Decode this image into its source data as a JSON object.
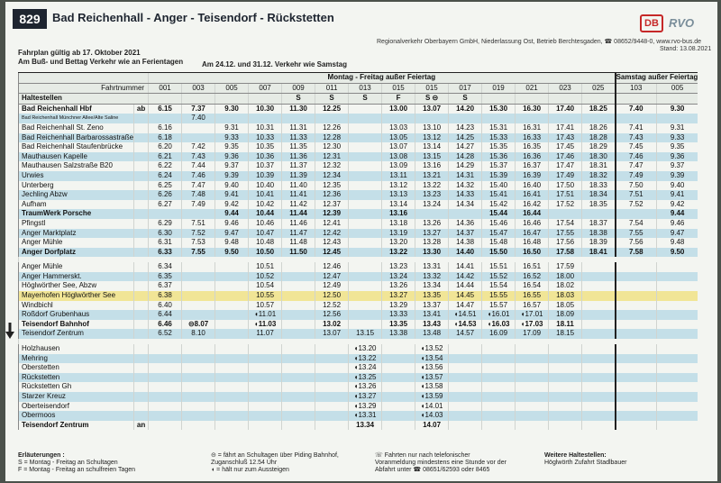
{
  "header": {
    "route_number": "829",
    "route_title": "Bad Reichenhall - Anger - Teisendorf - Rückstetten",
    "validity_line1": "Fahrplan gültig ab 17. Oktober 2021",
    "validity_line2": "Am Buß- und Bettag Verkehr wie an Ferientagen",
    "special_days": "Am 24.12. und 31.12. Verkehr wie Samstag",
    "operator": "Regionalverkehr Oberbayern GmbH, Niederlassung Ost, Betrieb Berchtesgaden, ☎ 08652/9448-0, www.rvo-bus.de",
    "stand": "Stand: 13.08.2021",
    "logo_db": "DB",
    "logo_rvo": "RVO"
  },
  "table": {
    "group_weekday": "Montag - Freitag außer Feiertag",
    "group_saturday": "Samstag außer Feiertag",
    "stops_header": "Haltestellen",
    "trip_number_label": "Fahrtnummer",
    "trips": [
      "001",
      "003",
      "005",
      "007",
      "009",
      "011",
      "013",
      "015",
      "015",
      "017",
      "019",
      "021",
      "023",
      "025",
      "103",
      "005"
    ],
    "notes": [
      "",
      "",
      "",
      "",
      "S",
      "S",
      "S",
      "F",
      "S ⊝",
      "S",
      "",
      "",
      "",
      "",
      "",
      ""
    ],
    "rows": [
      {
        "stop": "Bad Reichenhall Hbf",
        "mark": "ab",
        "times": [
          "6.15",
          "7.37",
          "9.30",
          "10.30",
          "11.30",
          "12.25",
          "",
          "13.00",
          "13.07",
          "14.20",
          "15.30",
          "16.30",
          "17.40",
          "18.25",
          "7.40",
          "9.30"
        ],
        "style": "bold"
      },
      {
        "stop": "Bad Reichenhall Münchner Allee/Alte Saline",
        "mark": "",
        "times": [
          "",
          "7.40",
          "",
          "",
          "",
          "",
          "",
          "",
          "",
          "",
          "",
          "",
          "",
          "",
          "",
          ""
        ],
        "style": "small"
      },
      {
        "stop": "Bad Reichenhall St. Zeno",
        "mark": "",
        "times": [
          "6.16",
          "",
          "9.31",
          "10.31",
          "11.31",
          "12.26",
          "",
          "13.03",
          "13.10",
          "14.23",
          "15.31",
          "16.31",
          "17.41",
          "18.26",
          "7.41",
          "9.31"
        ],
        "style": ""
      },
      {
        "stop": "Bad Reichenhall Barbarossastraße",
        "mark": "",
        "times": [
          "6.18",
          "",
          "9.33",
          "10.33",
          "11.33",
          "12.28",
          "",
          "13.05",
          "13.12",
          "14.25",
          "15.33",
          "16.33",
          "17.43",
          "18.28",
          "7.43",
          "9.33"
        ],
        "style": ""
      },
      {
        "stop": "Bad Reichenhall Staufenbrücke",
        "mark": "",
        "times": [
          "6.20",
          "7.42",
          "9.35",
          "10.35",
          "11.35",
          "12.30",
          "",
          "13.07",
          "13.14",
          "14.27",
          "15.35",
          "16.35",
          "17.45",
          "18.29",
          "7.45",
          "9.35"
        ],
        "style": ""
      },
      {
        "stop": "Mauthausen Kapelle",
        "mark": "",
        "times": [
          "6.21",
          "7.43",
          "9.36",
          "10.36",
          "11.36",
          "12.31",
          "",
          "13.08",
          "13.15",
          "14.28",
          "15.36",
          "16.36",
          "17.46",
          "18.30",
          "7.46",
          "9.36"
        ],
        "style": ""
      },
      {
        "stop": "Mauthausen Salzstraße B20",
        "mark": "",
        "times": [
          "6.22",
          "7.44",
          "9.37",
          "10.37",
          "11.37",
          "12.32",
          "",
          "13.09",
          "13.16",
          "14.29",
          "15.37",
          "16.37",
          "17.47",
          "18.31",
          "7.47",
          "9.37"
        ],
        "style": ""
      },
      {
        "stop": "Urwies",
        "mark": "",
        "times": [
          "6.24",
          "7.46",
          "9.39",
          "10.39",
          "11.39",
          "12.34",
          "",
          "13.11",
          "13.21",
          "14.31",
          "15.39",
          "16.39",
          "17.49",
          "18.32",
          "7.49",
          "9.39"
        ],
        "style": ""
      },
      {
        "stop": "Unterberg",
        "mark": "",
        "times": [
          "6.25",
          "7.47",
          "9.40",
          "10.40",
          "11.40",
          "12.35",
          "",
          "13.12",
          "13.22",
          "14.32",
          "15.40",
          "16.40",
          "17.50",
          "18.33",
          "7.50",
          "9.40"
        ],
        "style": ""
      },
      {
        "stop": "Jechling Abzw",
        "mark": "",
        "times": [
          "6.26",
          "7.48",
          "9.41",
          "10.41",
          "11.41",
          "12.36",
          "",
          "13.13",
          "13.23",
          "14.33",
          "15.41",
          "16.41",
          "17.51",
          "18.34",
          "7.51",
          "9.41"
        ],
        "style": ""
      },
      {
        "stop": "Aufham",
        "mark": "",
        "times": [
          "6.27",
          "7.49",
          "9.42",
          "10.42",
          "11.42",
          "12.37",
          "",
          "13.14",
          "13.24",
          "14.34",
          "15.42",
          "16.42",
          "17.52",
          "18.35",
          "7.52",
          "9.42"
        ],
        "style": ""
      },
      {
        "stop": "TraumWerk Porsche",
        "mark": "",
        "times": [
          "",
          "",
          "9.44",
          "10.44",
          "11.44",
          "12.39",
          "",
          "13.16",
          "",
          "",
          "15.44",
          "16.44",
          "",
          "",
          "",
          "9.44"
        ],
        "style": "bold"
      },
      {
        "stop": "Pfingstl",
        "mark": "",
        "times": [
          "6.29",
          "7.51",
          "9.46",
          "10.46",
          "11.46",
          "12.41",
          "",
          "13.18",
          "13.26",
          "14.36",
          "15.46",
          "16.46",
          "17.54",
          "18.37",
          "7.54",
          "9.46"
        ],
        "style": ""
      },
      {
        "stop": "Anger Marktplatz",
        "mark": "",
        "times": [
          "6.30",
          "7.52",
          "9.47",
          "10.47",
          "11.47",
          "12.42",
          "",
          "13.19",
          "13.27",
          "14.37",
          "15.47",
          "16.47",
          "17.55",
          "18.38",
          "7.55",
          "9.47"
        ],
        "style": ""
      },
      {
        "stop": "Anger Mühle",
        "mark": "",
        "times": [
          "6.31",
          "7.53",
          "9.48",
          "10.48",
          "11.48",
          "12.43",
          "",
          "13.20",
          "13.28",
          "14.38",
          "15.48",
          "16.48",
          "17.56",
          "18.39",
          "7.56",
          "9.48"
        ],
        "style": ""
      },
      {
        "stop": "Anger Dorfplatz",
        "mark": "",
        "times": [
          "6.33",
          "7.55",
          "9.50",
          "10.50",
          "11.50",
          "12.45",
          "",
          "13.22",
          "13.30",
          "14.40",
          "15.50",
          "16.50",
          "17.58",
          "18.41",
          "7.58",
          "9.50"
        ],
        "style": "bold"
      },
      {
        "stop": "Anger Mühle",
        "mark": "",
        "times": [
          "6.34",
          "",
          "",
          "10.51",
          "",
          "12.46",
          "",
          "13.23",
          "13.31",
          "14.41",
          "15.51",
          "16.51",
          "17.59",
          "",
          "",
          ""
        ],
        "style": ""
      },
      {
        "stop": "Anger Hammerskt.",
        "mark": "",
        "times": [
          "6.35",
          "",
          "",
          "10.52",
          "",
          "12.47",
          "",
          "13.24",
          "13.32",
          "14.42",
          "15.52",
          "16.52",
          "18.00",
          "",
          "",
          ""
        ],
        "style": ""
      },
      {
        "stop": "Höglwörther See, Abzw",
        "mark": "",
        "times": [
          "6.37",
          "",
          "",
          "10.54",
          "",
          "12.49",
          "",
          "13.26",
          "13.34",
          "14.44",
          "15.54",
          "16.54",
          "18.02",
          "",
          "",
          ""
        ],
        "style": ""
      },
      {
        "stop": "Mayerhofen Höglwörther See",
        "mark": "",
        "times": [
          "6.38",
          "",
          "",
          "10.55",
          "",
          "12.50",
          "",
          "13.27",
          "13.35",
          "14.45",
          "15.55",
          "16.55",
          "18.03",
          "",
          "",
          ""
        ],
        "style": "hl"
      },
      {
        "stop": "Windbichl",
        "mark": "",
        "times": [
          "6.40",
          "",
          "",
          "10.57",
          "",
          "12.52",
          "",
          "13.29",
          "13.37",
          "14.47",
          "15.57",
          "16.57",
          "18.05",
          "",
          "",
          ""
        ],
        "style": ""
      },
      {
        "stop": "Roßdorf Grubenhaus",
        "mark": "",
        "times": [
          "6.44",
          "",
          "",
          "◖11.01",
          "",
          "12.56",
          "",
          "13.33",
          "13.41",
          "◖14.51",
          "◖16.01",
          "◖17.01",
          "18.09",
          "",
          "",
          ""
        ],
        "style": ""
      },
      {
        "stop": "Teisendorf Bahnhof",
        "mark": "",
        "times": [
          "6.46",
          "⊝8.07",
          "",
          "◖11.03",
          "",
          "13.02",
          "",
          "13.35",
          "13.43",
          "◖14.53",
          "◖16.03",
          "◖17.03",
          "18.11",
          "",
          "",
          ""
        ],
        "style": "bold"
      },
      {
        "stop": "Teisendorf Zentrum",
        "mark": "",
        "times": [
          "6.52",
          "8.10",
          "",
          "11.07",
          "",
          "13.07",
          "13.15",
          "13.38",
          "13.48",
          "14.57",
          "16.09",
          "17.09",
          "18.15",
          "",
          "",
          ""
        ],
        "style": ""
      },
      {
        "stop": "Holzhausen",
        "mark": "",
        "times": [
          "",
          "",
          "",
          "",
          "",
          "",
          "◖13.20",
          "",
          "◖13.52",
          "",
          "",
          "",
          "",
          "",
          "",
          ""
        ],
        "style": ""
      },
      {
        "stop": "Mehring",
        "mark": "",
        "times": [
          "",
          "",
          "",
          "",
          "",
          "",
          "◖13.22",
          "",
          "◖13.54",
          "",
          "",
          "",
          "",
          "",
          "",
          ""
        ],
        "style": ""
      },
      {
        "stop": "Oberstetten",
        "mark": "",
        "times": [
          "",
          "",
          "",
          "",
          "",
          "",
          "◖13.24",
          "",
          "◖13.56",
          "",
          "",
          "",
          "",
          "",
          "",
          ""
        ],
        "style": ""
      },
      {
        "stop": "Rückstetten",
        "mark": "",
        "times": [
          "",
          "",
          "",
          "",
          "",
          "",
          "◖13.25",
          "",
          "◖13.57",
          "",
          "",
          "",
          "",
          "",
          "",
          ""
        ],
        "style": ""
      },
      {
        "stop": "Rückstetten Gh",
        "mark": "",
        "times": [
          "",
          "",
          "",
          "",
          "",
          "",
          "◖13.26",
          "",
          "◖13.58",
          "",
          "",
          "",
          "",
          "",
          "",
          ""
        ],
        "style": ""
      },
      {
        "stop": "Starzer Kreuz",
        "mark": "",
        "times": [
          "",
          "",
          "",
          "",
          "",
          "",
          "◖13.27",
          "",
          "◖13.59",
          "",
          "",
          "",
          "",
          "",
          "",
          ""
        ],
        "style": ""
      },
      {
        "stop": "Oberteisendorf",
        "mark": "",
        "times": [
          "",
          "",
          "",
          "",
          "",
          "",
          "◖13.29",
          "",
          "◖14.01",
          "",
          "",
          "",
          "",
          "",
          "",
          ""
        ],
        "style": ""
      },
      {
        "stop": "Obermoos",
        "mark": "",
        "times": [
          "",
          "",
          "",
          "",
          "",
          "",
          "◖13.31",
          "",
          "◖14.03",
          "",
          "",
          "",
          "",
          "",
          "",
          ""
        ],
        "style": ""
      },
      {
        "stop": "Teisendorf Zentrum",
        "mark": "an",
        "times": [
          "",
          "",
          "",
          "",
          "",
          "",
          "13.34",
          "",
          "14.07",
          "",
          "",
          "",
          "",
          "",
          "",
          ""
        ],
        "style": "bold"
      }
    ]
  },
  "footer": {
    "legend_title": "Erläuterungen :",
    "legend_s": "S = Montag - Freitag an Schultagen",
    "legend_f": "F = Montag - Freitag an schulfreien Tagen",
    "legend_bahnhof": "⊝ = fährt an Schultagen über Piding Bahnhof, Zuganschluß 12.54 Uhr",
    "legend_aussteigen": "◖ = hält nur zum Aussteigen",
    "legend_phone": "☏ Fahrten nur nach telefonischer Voranmeldung mindestens eine Stunde vor der Abfahrt unter ☎ 08651/62593 oder 8465",
    "further_title": "Weitere Haltestellen:",
    "further_stop": "Höglwörth Zufahrt Stadlbauer"
  }
}
